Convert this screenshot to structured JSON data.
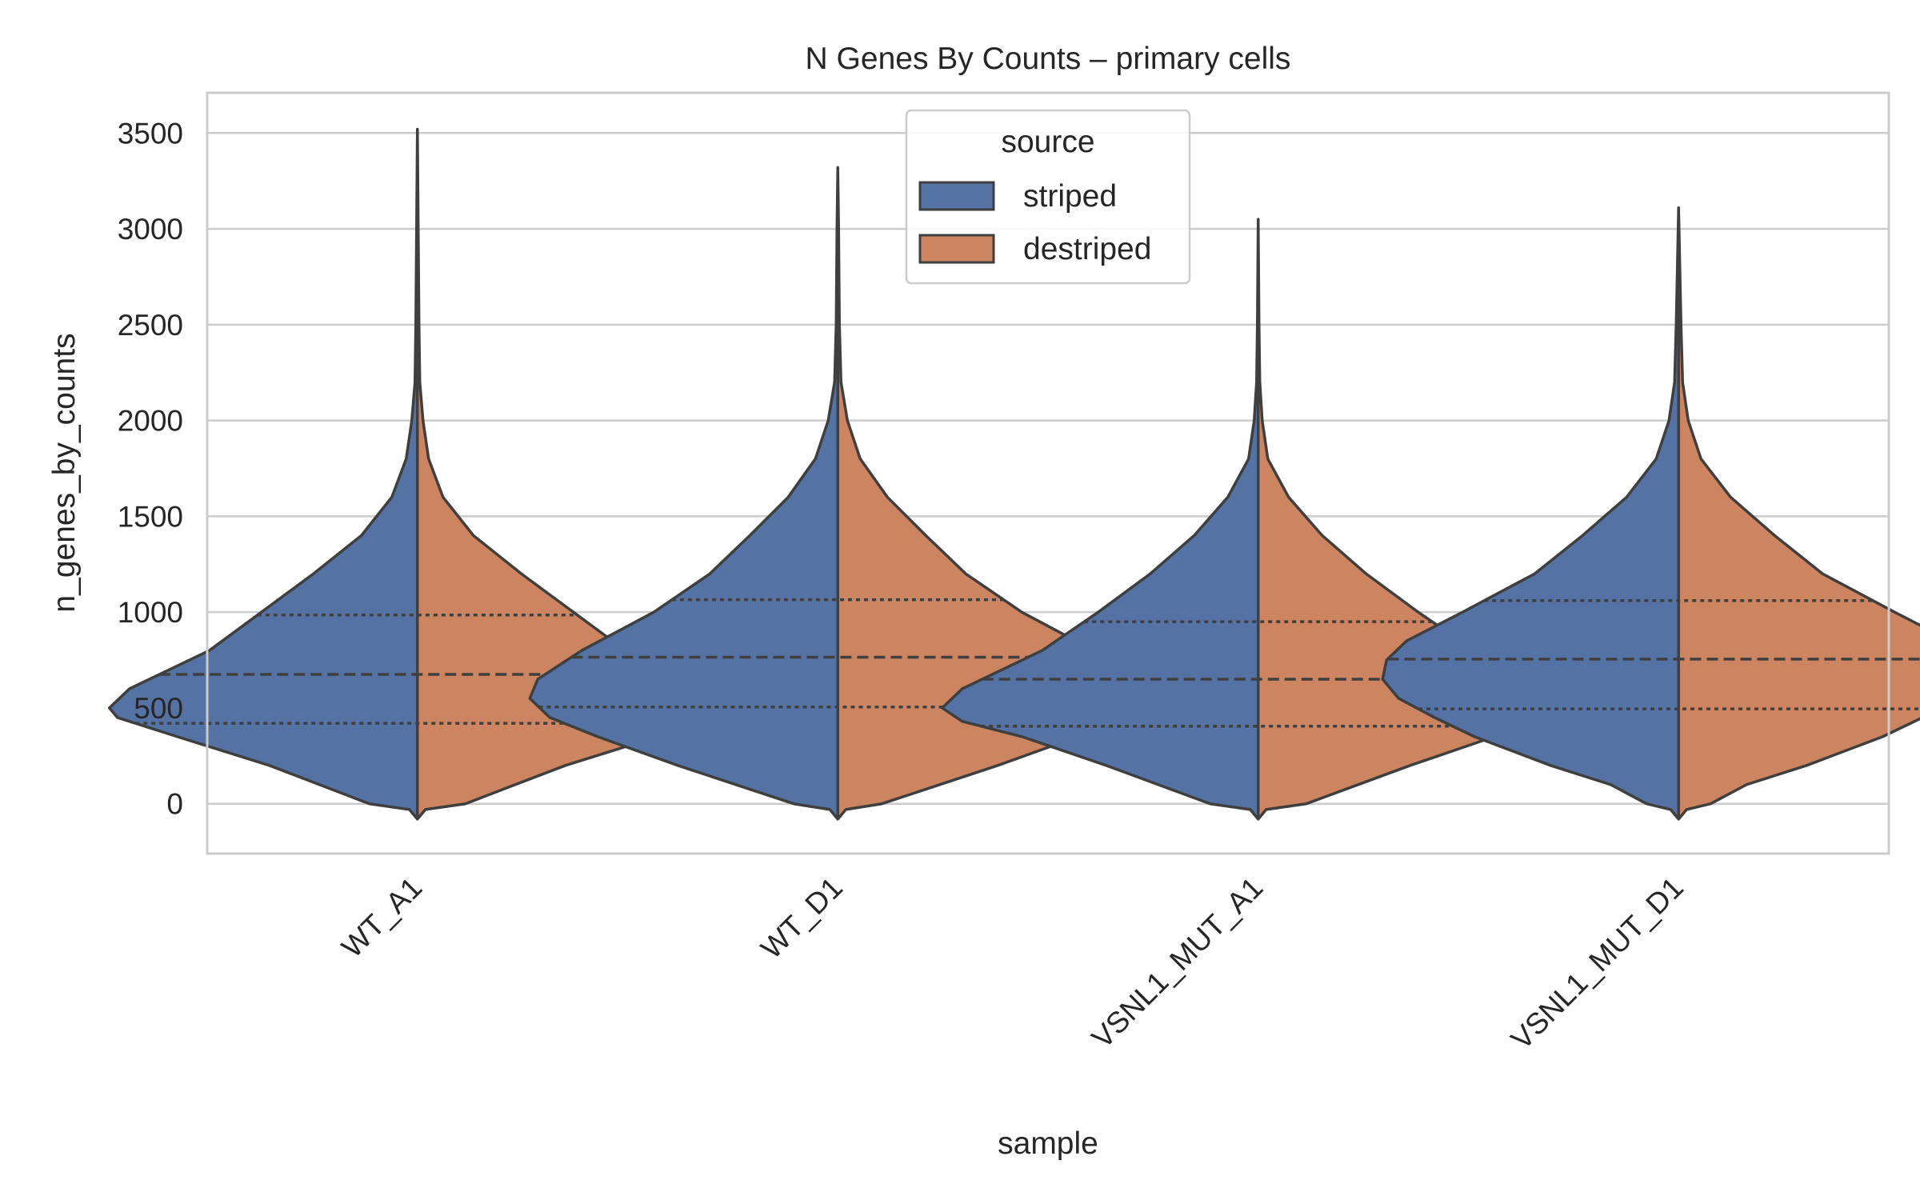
{
  "chart_data": {
    "type": "violin",
    "title": "N Genes By Counts – primary cells",
    "xlabel": "sample",
    "ylabel": "n_genes_by_counts",
    "categories": [
      "WT_A1",
      "WT_D1",
      "VSNL1_MUT_A1",
      "VSNL1_MUT_D1"
    ],
    "ylim": [
      -260,
      3710
    ],
    "yticks": [
      0,
      500,
      1000,
      1500,
      2000,
      2500,
      3000,
      3500
    ],
    "grid": true,
    "split": true,
    "legend": {
      "title": "source",
      "position": "top-center",
      "entries": [
        {
          "label": "striped",
          "color": "#5572a4"
        },
        {
          "label": "destriped",
          "color": "#cc8560"
        }
      ]
    },
    "series": [
      {
        "name": "striped",
        "color": "#5572a4"
      },
      {
        "name": "destriped",
        "color": "#cc8560"
      }
    ],
    "violins": [
      {
        "category": "WT_A1",
        "min": -80,
        "max": 3520,
        "q1": 420,
        "median": 675,
        "q3": 985,
        "profile": [
          [
            -80,
            0
          ],
          [
            -30,
            10
          ],
          [
            0,
            60
          ],
          [
            200,
            185
          ],
          [
            350,
            300
          ],
          [
            450,
            375
          ],
          [
            500,
            385
          ],
          [
            600,
            360
          ],
          [
            700,
            310
          ],
          [
            800,
            260
          ],
          [
            1000,
            195
          ],
          [
            1200,
            130
          ],
          [
            1400,
            70
          ],
          [
            1600,
            32
          ],
          [
            1800,
            14
          ],
          [
            2000,
            7
          ],
          [
            2200,
            3
          ],
          [
            2500,
            2
          ],
          [
            3000,
            1
          ],
          [
            3520,
            0
          ]
        ]
      },
      {
        "category": "WT_D1",
        "min": -80,
        "max": 3320,
        "q1": 505,
        "median": 765,
        "q3": 1065,
        "profile": [
          [
            -80,
            0
          ],
          [
            -30,
            10
          ],
          [
            0,
            55
          ],
          [
            200,
            200
          ],
          [
            350,
            300
          ],
          [
            450,
            360
          ],
          [
            550,
            385
          ],
          [
            650,
            375
          ],
          [
            800,
            320
          ],
          [
            1000,
            230
          ],
          [
            1200,
            160
          ],
          [
            1400,
            110
          ],
          [
            1600,
            62
          ],
          [
            1800,
            28
          ],
          [
            2000,
            12
          ],
          [
            2200,
            4
          ],
          [
            2500,
            2
          ],
          [
            3000,
            1
          ],
          [
            3320,
            0
          ]
        ]
      },
      {
        "category": "VSNL1_MUT_A1",
        "min": -80,
        "max": 3050,
        "q1": 405,
        "median": 650,
        "q3": 950,
        "profile": [
          [
            -80,
            0
          ],
          [
            -30,
            10
          ],
          [
            0,
            60
          ],
          [
            200,
            190
          ],
          [
            350,
            295
          ],
          [
            430,
            370
          ],
          [
            500,
            395
          ],
          [
            600,
            370
          ],
          [
            700,
            320
          ],
          [
            800,
            270
          ],
          [
            1000,
            200
          ],
          [
            1200,
            135
          ],
          [
            1400,
            80
          ],
          [
            1600,
            38
          ],
          [
            1800,
            12
          ],
          [
            2000,
            5
          ],
          [
            2200,
            2
          ],
          [
            2500,
            1
          ],
          [
            3050,
            0
          ]
        ]
      },
      {
        "category": "VSNL1_MUT_D1",
        "min": -80,
        "max": 3110,
        "q1": 495,
        "median": 755,
        "q3": 1060,
        "profile": [
          [
            -80,
            0
          ],
          [
            -30,
            10
          ],
          [
            0,
            40
          ],
          [
            100,
            85
          ],
          [
            200,
            160
          ],
          [
            350,
            255
          ],
          [
            450,
            305
          ],
          [
            550,
            350
          ],
          [
            650,
            370
          ],
          [
            750,
            365
          ],
          [
            850,
            340
          ],
          [
            1000,
            270
          ],
          [
            1200,
            180
          ],
          [
            1400,
            120
          ],
          [
            1600,
            65
          ],
          [
            1800,
            28
          ],
          [
            2000,
            12
          ],
          [
            2200,
            5
          ],
          [
            2500,
            3
          ],
          [
            3110,
            0
          ]
        ]
      }
    ]
  }
}
